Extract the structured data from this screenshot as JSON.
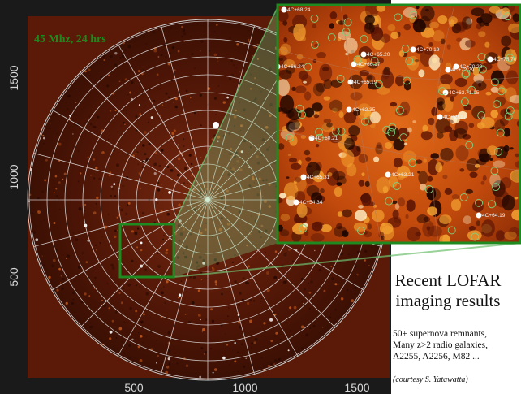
{
  "image_label": "45 Mhz, 24 hrs",
  "axes": {
    "x_ticks": [
      "500",
      "1000",
      "1500"
    ],
    "y_ticks": [
      "1500",
      "1000",
      "500"
    ]
  },
  "inset": {
    "sources": [
      "4C+68.24",
      "4C+66.24",
      "4C+65.20",
      "4C+66.17",
      "4C+70.19",
      "4C+65.19",
      "4C+72.29",
      "4C+70.29",
      "4C+63.71.15",
      "4C+62.35",
      "4C+69.17",
      "4C+60.21",
      "4C+65.31",
      "4C+63.21",
      "4C+54.34",
      "4C+64.19",
      "4C+75.70"
    ]
  },
  "caption": {
    "title_lines": [
      "Recent LOFAR",
      "imaging results"
    ],
    "body_lines": [
      "50+ supernova remnants,",
      "Many z>2 radio galaxies,",
      "A2255, A2256, M82 ..."
    ],
    "credit": "(courtesy S. Yatawatta)"
  },
  "colors": {
    "background_map": "#5c1a08",
    "frame_green": "#1f8a1f",
    "label_green": "#1e7a1e",
    "grid": "#e6e6e6"
  }
}
